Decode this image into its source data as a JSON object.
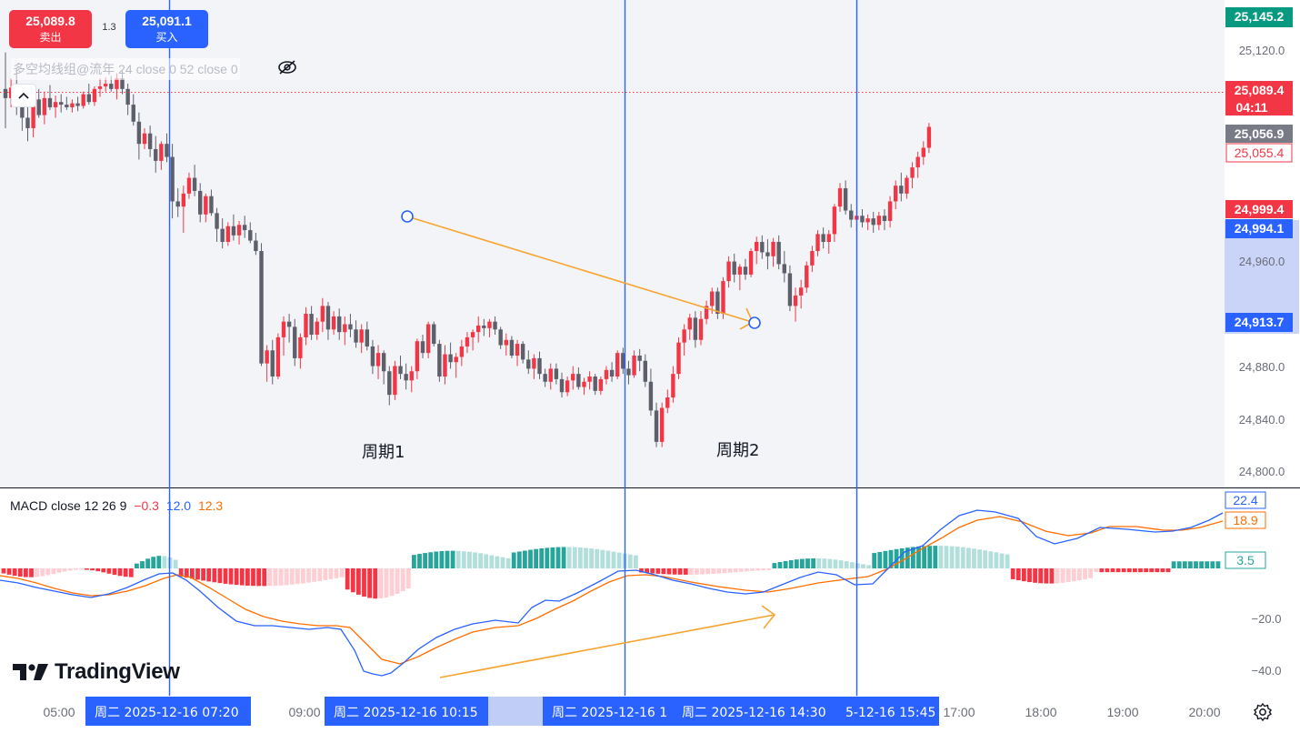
{
  "toolbar": {
    "sell_price": "25,089.8",
    "sell_label": "卖出",
    "spread": "1.3",
    "buy_price": "25,091.1",
    "buy_label": "买入"
  },
  "main_legend": "多空均线组@流年 24 close 0 52 close 0",
  "macd_legend": {
    "title": "MACD close 12 26 9",
    "hist": "−0.3",
    "macd": "12.0",
    "signal": "12.3"
  },
  "annotations": {
    "cycle1": "周期1",
    "cycle2": "周期2"
  },
  "watermark": "TradingView",
  "price_axis": {
    "ticks": [
      "25,120.0",
      "24,960.0",
      "24,880.0",
      "24,840.0",
      "24,800.0"
    ],
    "labels": [
      {
        "text": "25,145.2",
        "color": "#089981"
      },
      {
        "text": "25,089.4",
        "subtext": "04:11",
        "color": "#f23645"
      },
      {
        "text": "25,056.9",
        "color": "#787b86"
      },
      {
        "text": "25,055.4",
        "color": "#f23645",
        "outline": true
      },
      {
        "text": "24,999.4",
        "color": "#f23645"
      },
      {
        "text": "24,994.1",
        "color": "#2962ff"
      },
      {
        "text": "24,913.7",
        "color": "#2962ff"
      }
    ]
  },
  "macd_axis": {
    "ticks": [
      "−20.0",
      "−40.0"
    ],
    "labels": [
      {
        "text": "22.4",
        "color": "#2962ff"
      },
      {
        "text": "18.9",
        "color": "#ff6d00"
      },
      {
        "text": "3.5",
        "color": "#26a69a"
      }
    ]
  },
  "time_axis": {
    "ticks": [
      "05:00",
      "09:00",
      "17:00",
      "18:00",
      "19:00",
      "20:00"
    ],
    "date_labels": [
      "周二 2025-12-16 07:20",
      "周二 2025-12-16 10:15",
      "周二 2025-12-16 1",
      "周二 2025-12-16 14:30",
      "5-12-16 15:45"
    ]
  },
  "colors": {
    "up": "#f23645",
    "up_light": "#f7a1ab",
    "down": "#5d606b",
    "hist_pos": "#26a69a",
    "hist_pos_light": "#b2dfdb",
    "hist_neg": "#f23645",
    "hist_neg_light": "#ffcdd2",
    "macd_line": "#2962ff",
    "signal_line": "#ff6d00",
    "vertical_line": "#2962ff",
    "arrow": "#f7a531",
    "selection": "#bfcdf7"
  },
  "icons": [
    "eye-off-icon",
    "chevron-up-icon",
    "settings-icon",
    "tradingview-logo-icon"
  ]
}
